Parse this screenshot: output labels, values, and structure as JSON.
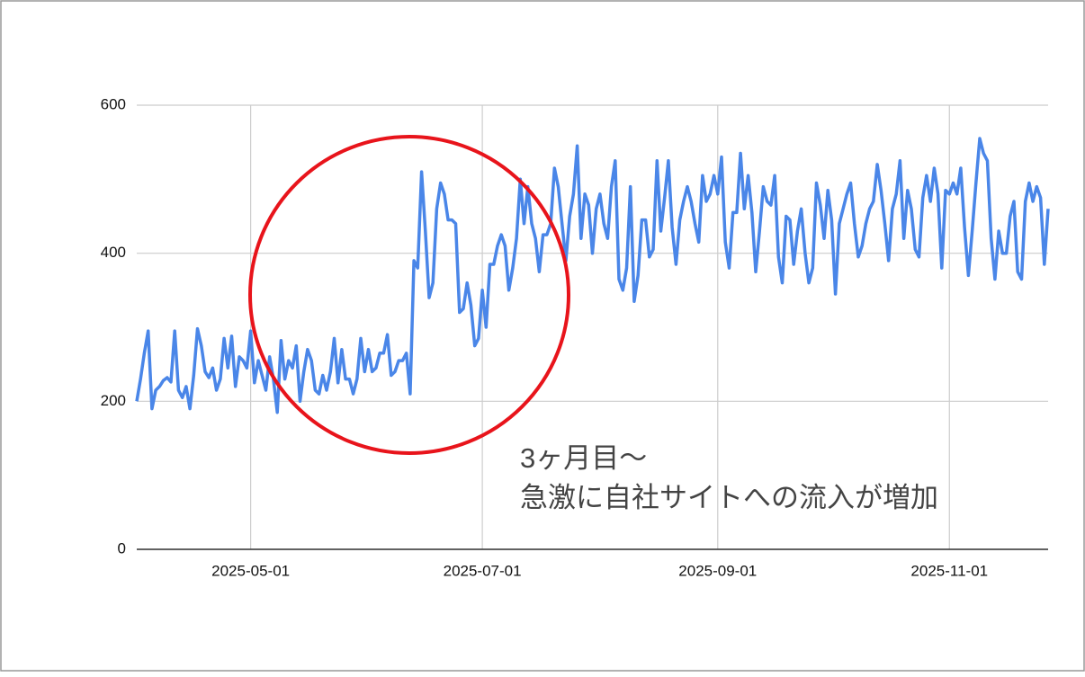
{
  "chart_data": {
    "type": "line",
    "x": [
      "2025-04-01",
      "2025-04-02",
      "2025-04-03",
      "2025-04-04",
      "2025-04-05",
      "2025-04-06",
      "2025-04-07",
      "2025-04-08",
      "2025-04-09",
      "2025-04-10",
      "2025-04-11",
      "2025-04-12",
      "2025-04-13",
      "2025-04-14",
      "2025-04-15",
      "2025-04-16",
      "2025-04-17",
      "2025-04-18",
      "2025-04-19",
      "2025-04-20",
      "2025-04-21",
      "2025-04-22",
      "2025-04-23",
      "2025-04-24",
      "2025-04-25",
      "2025-04-26",
      "2025-04-27",
      "2025-04-28",
      "2025-04-29",
      "2025-04-30",
      "2025-05-01",
      "2025-05-02",
      "2025-05-03",
      "2025-05-04",
      "2025-05-05",
      "2025-05-06",
      "2025-05-07",
      "2025-05-08",
      "2025-05-09",
      "2025-05-10",
      "2025-05-11",
      "2025-05-12",
      "2025-05-13",
      "2025-05-14",
      "2025-05-15",
      "2025-05-16",
      "2025-05-17",
      "2025-05-18",
      "2025-05-19",
      "2025-05-20",
      "2025-05-21",
      "2025-05-22",
      "2025-05-23",
      "2025-05-24",
      "2025-05-25",
      "2025-05-26",
      "2025-05-27",
      "2025-05-28",
      "2025-05-29",
      "2025-05-30",
      "2025-05-31",
      "2025-06-01",
      "2025-06-02",
      "2025-06-03",
      "2025-06-04",
      "2025-06-05",
      "2025-06-06",
      "2025-06-07",
      "2025-06-08",
      "2025-06-09",
      "2025-06-10",
      "2025-06-11",
      "2025-06-12",
      "2025-06-13",
      "2025-06-14",
      "2025-06-15",
      "2025-06-16",
      "2025-06-17",
      "2025-06-18",
      "2025-06-19",
      "2025-06-20",
      "2025-06-21",
      "2025-06-22",
      "2025-06-23",
      "2025-06-24",
      "2025-06-25",
      "2025-06-26",
      "2025-06-27",
      "2025-06-28",
      "2025-06-29",
      "2025-06-30",
      "2025-07-01",
      "2025-07-02",
      "2025-07-03",
      "2025-07-04",
      "2025-07-05",
      "2025-07-06",
      "2025-07-07",
      "2025-07-08",
      "2025-07-09",
      "2025-07-10",
      "2025-07-11",
      "2025-07-12",
      "2025-07-13",
      "2025-07-14",
      "2025-07-15",
      "2025-07-16",
      "2025-07-17",
      "2025-07-18",
      "2025-07-19",
      "2025-07-20",
      "2025-07-21",
      "2025-07-22",
      "2025-07-23",
      "2025-07-24",
      "2025-07-25",
      "2025-07-26",
      "2025-07-27",
      "2025-07-28",
      "2025-07-29",
      "2025-07-30",
      "2025-07-31",
      "2025-08-01",
      "2025-08-02",
      "2025-08-03",
      "2025-08-04",
      "2025-08-05",
      "2025-08-06",
      "2025-08-07",
      "2025-08-08",
      "2025-08-09",
      "2025-08-10",
      "2025-08-11",
      "2025-08-12",
      "2025-08-13",
      "2025-08-14",
      "2025-08-15",
      "2025-08-16",
      "2025-08-17",
      "2025-08-18",
      "2025-08-19",
      "2025-08-20",
      "2025-08-21",
      "2025-08-22",
      "2025-08-23",
      "2025-08-24",
      "2025-08-25",
      "2025-08-26",
      "2025-08-27",
      "2025-08-28",
      "2025-08-29",
      "2025-08-30",
      "2025-08-31",
      "2025-09-01",
      "2025-09-02",
      "2025-09-03",
      "2025-09-04",
      "2025-09-05",
      "2025-09-06",
      "2025-09-07",
      "2025-09-08",
      "2025-09-09",
      "2025-09-10",
      "2025-09-11",
      "2025-09-12",
      "2025-09-13",
      "2025-09-14",
      "2025-09-15",
      "2025-09-16",
      "2025-09-17",
      "2025-09-18",
      "2025-09-19",
      "2025-09-20",
      "2025-09-21",
      "2025-09-22",
      "2025-09-23",
      "2025-09-24",
      "2025-09-25",
      "2025-09-26",
      "2025-09-27",
      "2025-09-28",
      "2025-09-29",
      "2025-09-30",
      "2025-10-01",
      "2025-10-02",
      "2025-10-03",
      "2025-10-04",
      "2025-10-05",
      "2025-10-06",
      "2025-10-07",
      "2025-10-08",
      "2025-10-09",
      "2025-10-10",
      "2025-10-11",
      "2025-10-12",
      "2025-10-13",
      "2025-10-14",
      "2025-10-15",
      "2025-10-16",
      "2025-10-17",
      "2025-10-18",
      "2025-10-19",
      "2025-10-20",
      "2025-10-21",
      "2025-10-22",
      "2025-10-23",
      "2025-10-24",
      "2025-10-25",
      "2025-10-26",
      "2025-10-27",
      "2025-10-28",
      "2025-10-29",
      "2025-10-30",
      "2025-10-31",
      "2025-11-01",
      "2025-11-02",
      "2025-11-03",
      "2025-11-04",
      "2025-11-05",
      "2025-11-06",
      "2025-11-07",
      "2025-11-08",
      "2025-11-09",
      "2025-11-10",
      "2025-11-11",
      "2025-11-12",
      "2025-11-13",
      "2025-11-14",
      "2025-11-15",
      "2025-11-16",
      "2025-11-17",
      "2025-11-18",
      "2025-11-19",
      "2025-11-20",
      "2025-11-21",
      "2025-11-22",
      "2025-11-23",
      "2025-11-24",
      "2025-11-25",
      "2025-11-26",
      "2025-11-27"
    ],
    "series": [
      {
        "color": "#4a86e8",
        "values": [
          200,
          230,
          265,
          295,
          190,
          215,
          220,
          228,
          232,
          226,
          295,
          215,
          205,
          220,
          190,
          235,
          298,
          275,
          240,
          232,
          245,
          215,
          230,
          285,
          245,
          288,
          220,
          260,
          255,
          245,
          295,
          225,
          255,
          235,
          215,
          260,
          230,
          185,
          282,
          230,
          255,
          245,
          275,
          200,
          240,
          270,
          255,
          215,
          210,
          235,
          215,
          240,
          285,
          225,
          270,
          230,
          230,
          210,
          230,
          285,
          240,
          270,
          240,
          245,
          265,
          265,
          290,
          235,
          240,
          255,
          255,
          265,
          210,
          390,
          380,
          510,
          430,
          340,
          360,
          460,
          495,
          480,
          445,
          445,
          440,
          320,
          325,
          360,
          330,
          275,
          285,
          350,
          300,
          385,
          385,
          410,
          425,
          410,
          350,
          380,
          420,
          500,
          440,
          490,
          440,
          420,
          375,
          425,
          425,
          440,
          515,
          490,
          440,
          390,
          450,
          480,
          545,
          420,
          480,
          465,
          400,
          460,
          480,
          440,
          420,
          490,
          525,
          365,
          350,
          380,
          490,
          335,
          370,
          445,
          445,
          395,
          405,
          525,
          430,
          475,
          525,
          435,
          385,
          445,
          470,
          490,
          470,
          440,
          415,
          505,
          470,
          480,
          505,
          480,
          530,
          415,
          380,
          455,
          455,
          535,
          460,
          505,
          455,
          375,
          430,
          490,
          470,
          465,
          505,
          395,
          360,
          450,
          445,
          385,
          430,
          460,
          400,
          360,
          380,
          495,
          465,
          420,
          485,
          445,
          345,
          440,
          460,
          480,
          495,
          440,
          395,
          410,
          440,
          460,
          470,
          520,
          485,
          440,
          390,
          460,
          480,
          525,
          420,
          485,
          460,
          405,
          395,
          475,
          505,
          470,
          515,
          480,
          380,
          485,
          480,
          495,
          480,
          515,
          435,
          370,
          430,
          495,
          555,
          535,
          525,
          420,
          365,
          430,
          400,
          400,
          450,
          470,
          375,
          365,
          470,
          495,
          470,
          490,
          475,
          385,
          460
        ]
      }
    ],
    "xlim": [
      "2025-04-01",
      "2025-11-27"
    ],
    "xticks": [
      "2025-05-01",
      "2025-07-01",
      "2025-09-01",
      "2025-11-01"
    ],
    "ylim": [
      0,
      600
    ],
    "yticks": [
      0,
      200,
      400,
      600
    ],
    "grid": true,
    "annotation": [
      "3ヶ月目〜",
      "急激に自社サイトへの流入が増加"
    ]
  }
}
